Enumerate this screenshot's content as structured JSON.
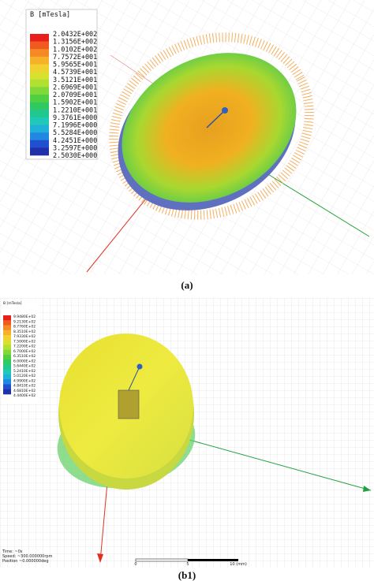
{
  "panel_a": {
    "legend_title": "B [mTesla]",
    "legend_values": [
      "2.0432E+002",
      "1.3156E+002",
      "1.0102E+002",
      "7.7572E+001",
      "5.9565E+001",
      "4.5739E+001",
      "3.5121E+001",
      "2.6969E+001",
      "2.0709E+001",
      "1.5902E+001",
      "1.2210E+001",
      "9.3761E+000",
      "7.1996E+000",
      "5.5284E+000",
      "4.2451E+000",
      "3.2597E+000",
      "2.5030E+000"
    ],
    "caption": "(a)"
  },
  "panel_b1": {
    "legend_title": "B [mTesla]",
    "legend_values": [
      "9.9480E+02",
      "9.2130E+02",
      "8.7760E+02",
      "8.3510E+02",
      "7.9330E+02",
      "7.5000E+02",
      "7.2200E+02",
      "6.7000E+02",
      "6.3510E+02",
      "6.0000E+02",
      "5.6440E+02",
      "5.2410E+02",
      "5.0120E+02",
      "4.9900E+02",
      "4.8410E+02",
      "4.6810E+02",
      "4.4400E+02"
    ],
    "info": [
      "Time: ~0s",
      "Speed: ~300.000000rpm",
      "Position ~0.000000deg"
    ],
    "scale_labels": [
      "0",
      "5",
      "10 (mm)"
    ],
    "caption": "(b1)"
  }
}
